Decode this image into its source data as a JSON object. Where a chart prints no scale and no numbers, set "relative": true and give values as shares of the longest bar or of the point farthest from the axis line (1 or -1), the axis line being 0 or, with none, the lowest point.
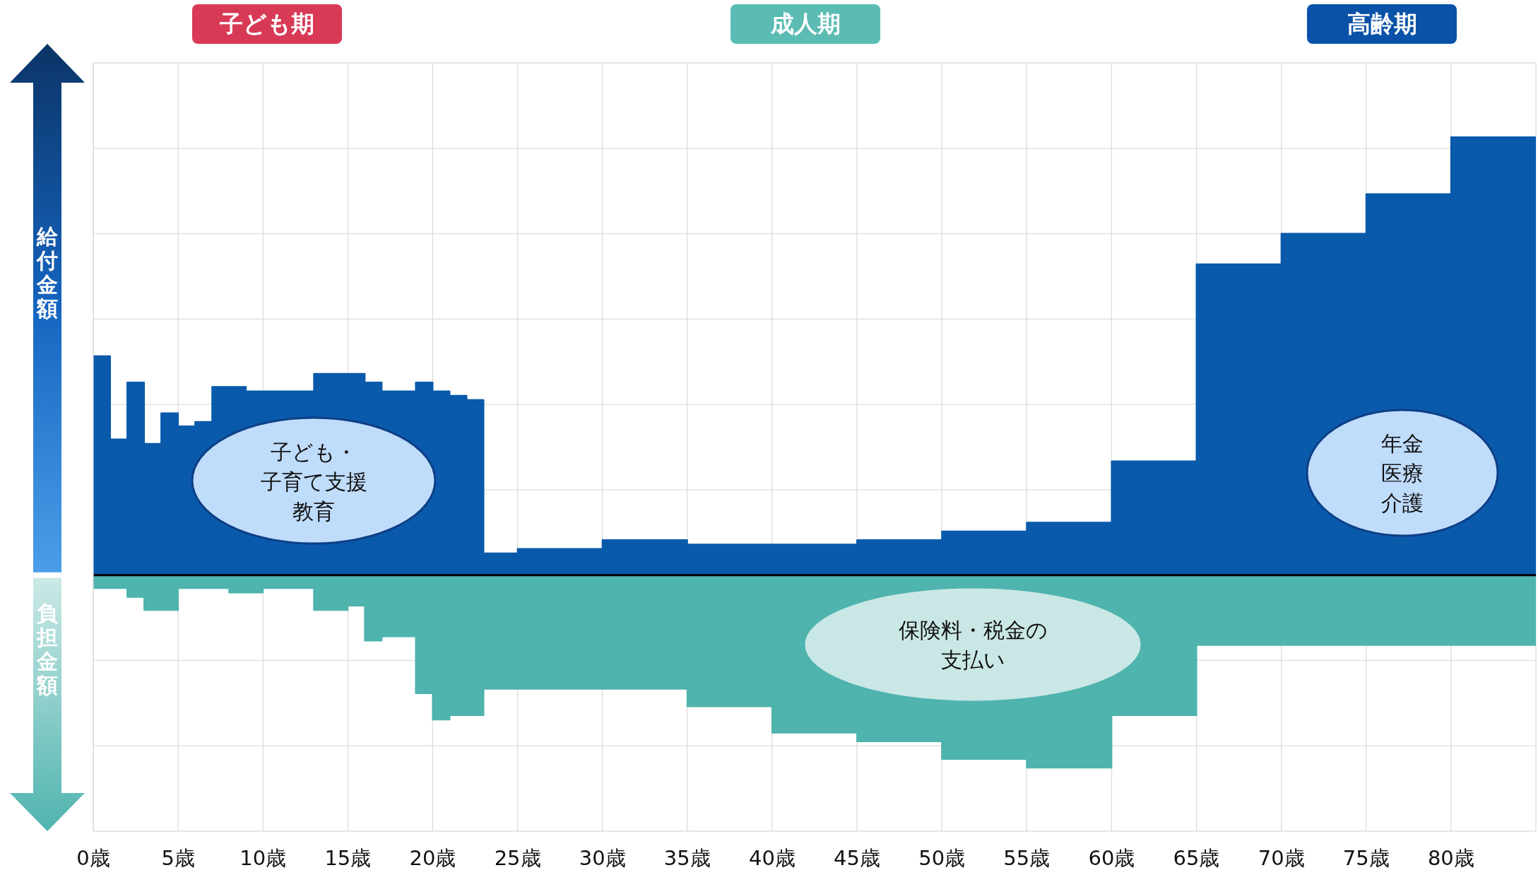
{
  "chart_data": {
    "type": "area",
    "relative": true,
    "x": [
      0,
      1,
      1,
      2,
      2,
      3,
      3,
      4,
      4,
      5,
      5,
      6,
      6,
      7,
      7,
      8,
      8,
      9,
      9,
      10,
      10,
      11,
      11,
      12,
      12,
      13,
      13,
      14,
      14,
      15,
      15,
      16,
      16,
      17,
      17,
      18,
      18,
      19,
      19,
      20,
      20,
      21,
      21,
      22,
      22,
      23,
      23,
      25,
      25,
      30,
      30,
      35,
      35,
      40,
      40,
      45,
      45,
      50,
      50,
      55,
      55,
      60,
      60,
      65,
      65,
      70,
      70,
      75,
      75,
      80,
      80,
      85
    ],
    "series": [
      {
        "color": "#0a5aac",
        "values": [
          0.5,
          0.5,
          0.31,
          0.31,
          0.44,
          0.44,
          0.3,
          0.3,
          0.37,
          0.37,
          0.34,
          0.34,
          0.35,
          0.35,
          0.43,
          0.43,
          0.43,
          0.43,
          0.42,
          0.42,
          0.42,
          0.42,
          0.42,
          0.42,
          0.42,
          0.42,
          0.46,
          0.46,
          0.46,
          0.46,
          0.46,
          0.46,
          0.44,
          0.44,
          0.42,
          0.42,
          0.42,
          0.42,
          0.44,
          0.44,
          0.42,
          0.42,
          0.41,
          0.41,
          0.4,
          0.4,
          0.05,
          0.05,
          0.06,
          0.06,
          0.08,
          0.08,
          0.07,
          0.07,
          0.07,
          0.07,
          0.08,
          0.08,
          0.1,
          0.1,
          0.12,
          0.12,
          0.26,
          0.26,
          0.71,
          0.71,
          0.78,
          0.78,
          0.87,
          0.87,
          1.0,
          1.0
        ]
      },
      {
        "color": "#4fb3ae",
        "values": [
          -0.03,
          -0.03,
          -0.03,
          -0.03,
          -0.05,
          -0.05,
          -0.08,
          -0.08,
          -0.08,
          -0.08,
          -0.03,
          -0.03,
          -0.03,
          -0.03,
          -0.03,
          -0.03,
          -0.04,
          -0.04,
          -0.04,
          -0.04,
          -0.03,
          -0.03,
          -0.03,
          -0.03,
          -0.03,
          -0.03,
          -0.08,
          -0.08,
          -0.08,
          -0.08,
          -0.07,
          -0.07,
          -0.15,
          -0.15,
          -0.14,
          -0.14,
          -0.14,
          -0.14,
          -0.27,
          -0.27,
          -0.33,
          -0.33,
          -0.32,
          -0.32,
          -0.32,
          -0.32,
          -0.26,
          -0.26,
          -0.26,
          -0.26,
          -0.26,
          -0.26,
          -0.3,
          -0.3,
          -0.36,
          -0.36,
          -0.38,
          -0.38,
          -0.42,
          -0.42,
          -0.44,
          -0.44,
          -0.32,
          -0.32,
          -0.16,
          -0.16,
          -0.16,
          -0.16,
          -0.16,
          -0.16,
          -0.16,
          -0.16
        ]
      }
    ],
    "xlim": [
      0,
      85
    ],
    "xticks": [
      {
        "value": 0,
        "label": "0歳"
      },
      {
        "value": 5,
        "label": "5歳"
      },
      {
        "value": 10,
        "label": "10歳"
      },
      {
        "value": 15,
        "label": "15歳"
      },
      {
        "value": 20,
        "label": "20歳"
      },
      {
        "value": 25,
        "label": "25歳"
      },
      {
        "value": 30,
        "label": "30歳"
      },
      {
        "value": 35,
        "label": "35歳"
      },
      {
        "value": 40,
        "label": "40歳"
      },
      {
        "value": 45,
        "label": "45歳"
      },
      {
        "value": 50,
        "label": "50歳"
      },
      {
        "value": 55,
        "label": "55歳"
      },
      {
        "value": 60,
        "label": "60歳"
      },
      {
        "value": 65,
        "label": "65歳"
      },
      {
        "value": 70,
        "label": "70歳"
      },
      {
        "value": 75,
        "label": "75歳"
      },
      {
        "value": 80,
        "label": "80歳"
      }
    ],
    "grid": true,
    "annotations": [
      "給付金額",
      "負担金額",
      "子ども期",
      "成人期",
      "高齢期",
      "子ども・",
      "子育て支援",
      "教育",
      "保険料・税金の",
      "支払い",
      "年金",
      "医療",
      "介護"
    ]
  }
}
